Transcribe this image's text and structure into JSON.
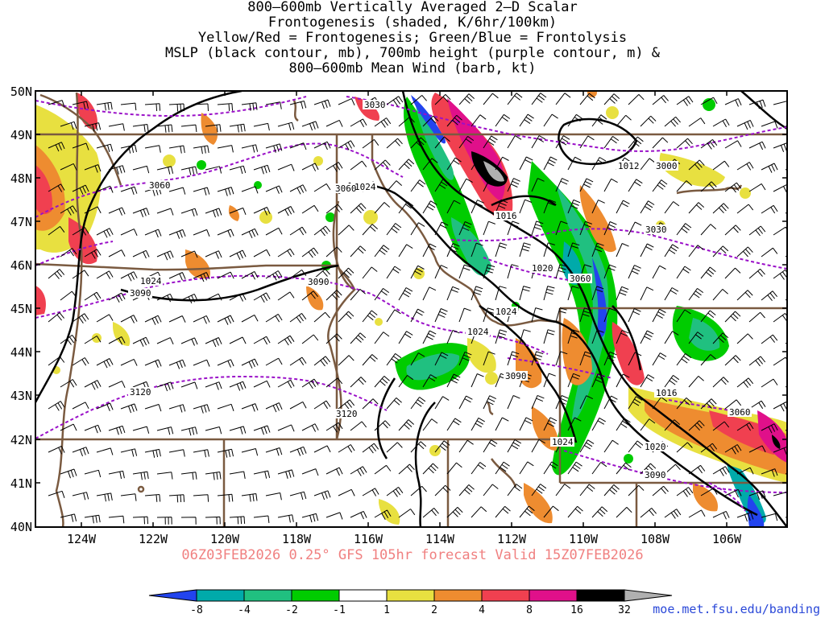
{
  "title_lines": [
    "800–600mb Vertically Averaged 2–D Scalar",
    "Frontogenesis (shaded, K/6hr/100km)",
    "Yellow/Red = Frontogenesis;  Green/Blue = Frontolysis",
    "MSLP (black contour, mb), 700mb height (purple contour, m) &",
    "800–600mb Mean Wind (barb, kt)"
  ],
  "forecast_label": "06Z03FEB2026 0.25° GFS 105hr forecast Valid 15Z07FEB2026",
  "credit": "moe.met.fsu.edu/banding",
  "lat_labels": [
    "50N",
    "49N",
    "48N",
    "47N",
    "46N",
    "45N",
    "44N",
    "43N",
    "42N",
    "41N",
    "40N"
  ],
  "lon_labels": [
    "124W",
    "122W",
    "120W",
    "118W",
    "116W",
    "114W",
    "112W",
    "110W",
    "108W",
    "106W"
  ],
  "colorbar": {
    "labels": [
      "-8",
      "-4",
      "-2",
      "-1",
      "1",
      "2",
      "4",
      "8",
      "16",
      "32"
    ],
    "colors": [
      "#2244ee",
      "#00aaaa",
      "#20c080",
      "#00cc00",
      "#ffffff",
      "#e8e040",
      "#ee8c30",
      "#f04050",
      "#e0108a",
      "#000000",
      "#b0b0b0"
    ]
  },
  "mslp_labels": [
    "1024",
    "1024",
    "1024",
    "1024",
    "1024",
    "1020",
    "1020",
    "1016",
    "1016",
    "1012"
  ],
  "height_labels": [
    "3030",
    "3060",
    "3090",
    "3120",
    "3060",
    "3090",
    "3120",
    "3090",
    "3030",
    "3000",
    "3060",
    "3090",
    "3060"
  ],
  "colors": {
    "mslp": "#000000",
    "height": "#9a10c8",
    "border": "#7a5a40",
    "forecast": "#f08080",
    "credit": "#2a48d8"
  }
}
